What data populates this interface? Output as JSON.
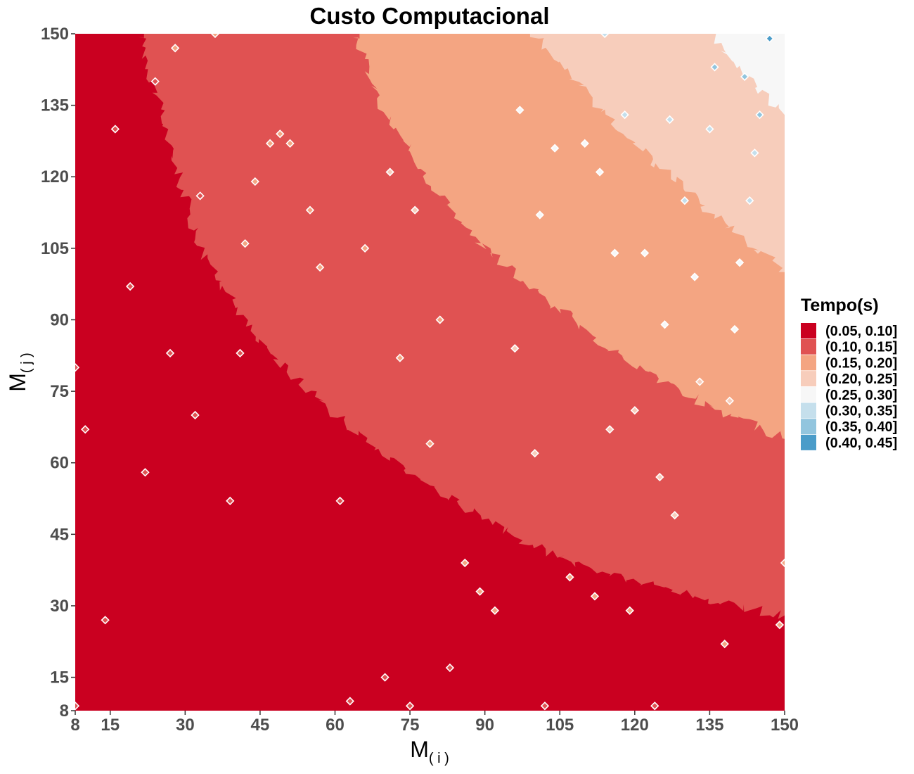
{
  "chart_data": {
    "type": "heatmap",
    "title": "Custo Computacional",
    "xlabel": "M",
    "xlabel_sub": "( i )",
    "ylabel": "M",
    "ylabel_sub": "( j )",
    "xlim": [
      8,
      150
    ],
    "ylim": [
      8,
      150
    ],
    "x_ticks": [
      8,
      15,
      30,
      45,
      60,
      75,
      90,
      105,
      120,
      135,
      150
    ],
    "y_ticks": [
      8,
      15,
      30,
      45,
      60,
      75,
      90,
      105,
      120,
      135,
      150
    ],
    "x_tick_labels": [
      "8",
      "15",
      "30",
      "45",
      "60",
      "75",
      "90",
      "105",
      "120",
      "135",
      "150"
    ],
    "y_tick_labels": [
      "8",
      "15",
      "30",
      "45",
      "60",
      "75",
      "90",
      "105",
      "120",
      "135",
      "150"
    ],
    "grid": false,
    "legend": {
      "title": "Tempo(s)",
      "placement": "right",
      "entries": [
        {
          "label": "(0.05, 0.10]",
          "color": "#ca0020"
        },
        {
          "label": "(0.10, 0.15]",
          "color": "#e05252"
        },
        {
          "label": "(0.15, 0.20]",
          "color": "#f4a582"
        },
        {
          "label": "(0.20, 0.25]",
          "color": "#f7cdbb"
        },
        {
          "label": "(0.25, 0.30]",
          "color": "#f7f7f7"
        },
        {
          "label": "(0.30, 0.35]",
          "color": "#c5dfec"
        },
        {
          "label": "(0.35, 0.40]",
          "color": "#92c5de"
        },
        {
          "label": "(0.40, 0.45]",
          "color": "#4a9cc9"
        }
      ]
    },
    "band_boundaries": [
      {
        "upper_bin": 0,
        "points": [
          [
            21,
            150
          ],
          [
            26,
            130
          ],
          [
            33,
            105
          ],
          [
            45,
            85
          ],
          [
            60,
            70
          ],
          [
            75,
            58
          ],
          [
            90,
            48
          ],
          [
            105,
            40
          ],
          [
            120,
            35
          ],
          [
            135,
            31
          ],
          [
            150,
            28
          ]
        ]
      },
      {
        "upper_bin": 1,
        "points": [
          [
            64,
            150
          ],
          [
            69,
            135
          ],
          [
            78,
            120
          ],
          [
            90,
            105
          ],
          [
            105,
            92
          ],
          [
            120,
            80
          ],
          [
            135,
            72
          ],
          [
            150,
            65
          ]
        ]
      },
      {
        "upper_bin": 2,
        "points": [
          [
            100,
            150
          ],
          [
            110,
            138
          ],
          [
            122,
            125
          ],
          [
            135,
            113
          ],
          [
            150,
            100
          ]
        ]
      },
      {
        "upper_bin": 3,
        "points": [
          [
            135,
            150
          ],
          [
            140,
            143
          ],
          [
            145,
            138
          ],
          [
            150,
            133
          ]
        ]
      }
    ],
    "outlier_points": [
      {
        "x": 8,
        "y": 80,
        "bin": 1
      },
      {
        "x": 8,
        "y": 9,
        "bin": 1
      },
      {
        "x": 10,
        "y": 67,
        "bin": 1
      },
      {
        "x": 14,
        "y": 27,
        "bin": 1
      },
      {
        "x": 16,
        "y": 130,
        "bin": 1
      },
      {
        "x": 19,
        "y": 97,
        "bin": 1
      },
      {
        "x": 22,
        "y": 58,
        "bin": 1
      },
      {
        "x": 24,
        "y": 140,
        "bin": 1
      },
      {
        "x": 27,
        "y": 83,
        "bin": 1
      },
      {
        "x": 28,
        "y": 147,
        "bin": 2
      },
      {
        "x": 32,
        "y": 70,
        "bin": 1
      },
      {
        "x": 33,
        "y": 116,
        "bin": 1
      },
      {
        "x": 36,
        "y": 150,
        "bin": 2
      },
      {
        "x": 39,
        "y": 52,
        "bin": 1
      },
      {
        "x": 41,
        "y": 83,
        "bin": 1
      },
      {
        "x": 42,
        "y": 106,
        "bin": 2
      },
      {
        "x": 44,
        "y": 119,
        "bin": 2
      },
      {
        "x": 47,
        "y": 127,
        "bin": 2
      },
      {
        "x": 49,
        "y": 129,
        "bin": 2
      },
      {
        "x": 51,
        "y": 127,
        "bin": 2
      },
      {
        "x": 55,
        "y": 113,
        "bin": 2
      },
      {
        "x": 57,
        "y": 101,
        "bin": 2
      },
      {
        "x": 61,
        "y": 52,
        "bin": 1
      },
      {
        "x": 63,
        "y": 10,
        "bin": 1
      },
      {
        "x": 66,
        "y": 105,
        "bin": 2
      },
      {
        "x": 70,
        "y": 15,
        "bin": 1
      },
      {
        "x": 71,
        "y": 121,
        "bin": 3
      },
      {
        "x": 73,
        "y": 82,
        "bin": 2
      },
      {
        "x": 75,
        "y": 9,
        "bin": 1
      },
      {
        "x": 76,
        "y": 113,
        "bin": 3
      },
      {
        "x": 79,
        "y": 64,
        "bin": 2
      },
      {
        "x": 81,
        "y": 90,
        "bin": 2
      },
      {
        "x": 83,
        "y": 17,
        "bin": 1
      },
      {
        "x": 86,
        "y": 39,
        "bin": 2
      },
      {
        "x": 89,
        "y": 33,
        "bin": 2
      },
      {
        "x": 92,
        "y": 29,
        "bin": 2
      },
      {
        "x": 96,
        "y": 84,
        "bin": 3
      },
      {
        "x": 97,
        "y": 134,
        "bin": 4
      },
      {
        "x": 100,
        "y": 62,
        "bin": 3
      },
      {
        "x": 101,
        "y": 112,
        "bin": 4
      },
      {
        "x": 102,
        "y": 9,
        "bin": 1
      },
      {
        "x": 104,
        "y": 126,
        "bin": 4
      },
      {
        "x": 107,
        "y": 36,
        "bin": 2
      },
      {
        "x": 110,
        "y": 127,
        "bin": 4
      },
      {
        "x": 112,
        "y": 32,
        "bin": 2
      },
      {
        "x": 113,
        "y": 121,
        "bin": 4
      },
      {
        "x": 114,
        "y": 150,
        "bin": 5
      },
      {
        "x": 115,
        "y": 67,
        "bin": 3
      },
      {
        "x": 116,
        "y": 104,
        "bin": 4
      },
      {
        "x": 118,
        "y": 133,
        "bin": 5
      },
      {
        "x": 119,
        "y": 29,
        "bin": 2
      },
      {
        "x": 120,
        "y": 71,
        "bin": 3
      },
      {
        "x": 122,
        "y": 104,
        "bin": 4
      },
      {
        "x": 124,
        "y": 9,
        "bin": 1
      },
      {
        "x": 125,
        "y": 57,
        "bin": 3
      },
      {
        "x": 126,
        "y": 89,
        "bin": 4
      },
      {
        "x": 127,
        "y": 132,
        "bin": 5
      },
      {
        "x": 128,
        "y": 49,
        "bin": 3
      },
      {
        "x": 130,
        "y": 115,
        "bin": 5
      },
      {
        "x": 132,
        "y": 99,
        "bin": 4
      },
      {
        "x": 133,
        "y": 77,
        "bin": 3
      },
      {
        "x": 135,
        "y": 130,
        "bin": 5
      },
      {
        "x": 136,
        "y": 143,
        "bin": 6
      },
      {
        "x": 138,
        "y": 22,
        "bin": 2
      },
      {
        "x": 139,
        "y": 73,
        "bin": 3
      },
      {
        "x": 140,
        "y": 88,
        "bin": 4
      },
      {
        "x": 141,
        "y": 102,
        "bin": 4
      },
      {
        "x": 142,
        "y": 141,
        "bin": 6
      },
      {
        "x": 143,
        "y": 115,
        "bin": 5
      },
      {
        "x": 144,
        "y": 125,
        "bin": 5
      },
      {
        "x": 145,
        "y": 133,
        "bin": 6
      },
      {
        "x": 147,
        "y": 149,
        "bin": 7
      },
      {
        "x": 149,
        "y": 26,
        "bin": 2
      },
      {
        "x": 150,
        "y": 39,
        "bin": 2
      }
    ]
  }
}
